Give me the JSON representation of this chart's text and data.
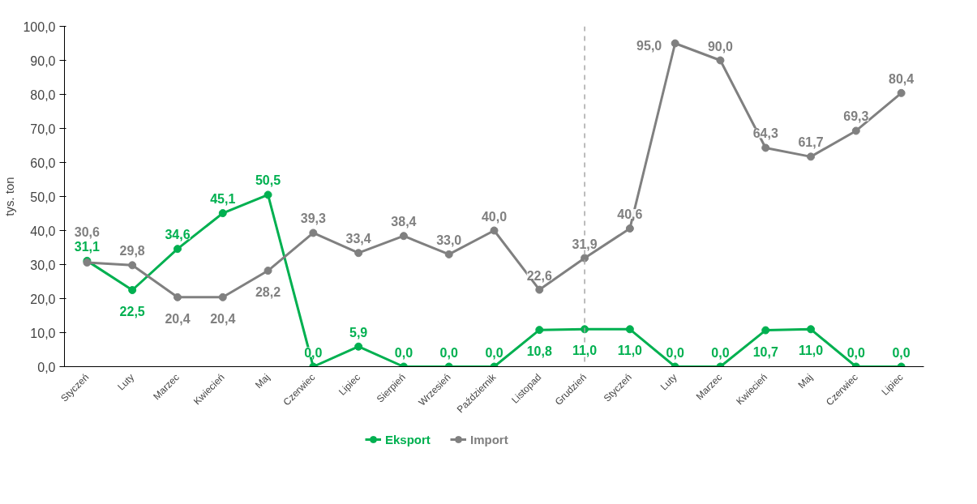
{
  "chart_data": {
    "type": "line",
    "ylabel": "tys. ton",
    "categories": [
      "Styczeń",
      "Luty",
      "Marzec",
      "Kwiecień",
      "Maj",
      "Czerwiec",
      "Lipiec",
      "Sierpień",
      "Wrzesień",
      "Październik",
      "Listopad",
      "Grudzień",
      "Styczeń",
      "Luty",
      "Marzec",
      "Kwiecień",
      "Maj",
      "Czerwiec",
      "Lipiec"
    ],
    "series": [
      {
        "name": "Eksport",
        "color": "#00b050",
        "values": [
          31.1,
          22.5,
          34.6,
          45.1,
          50.5,
          0.0,
          5.9,
          0.0,
          0.0,
          0.0,
          10.8,
          11.0,
          11.0,
          0.0,
          0.0,
          10.7,
          11.0,
          0.0,
          0.0
        ],
        "value_labels": [
          "31,1",
          "22,5",
          "34,6",
          "45,1",
          "50,5",
          "0,0",
          "5,9",
          "0,0",
          "0,0",
          "0,0",
          "10,8",
          "11,0",
          "11,0",
          "0,0",
          "0,0",
          "10,7",
          "11,0",
          "0,0",
          "0,0"
        ]
      },
      {
        "name": "Import",
        "color": "#808080",
        "values": [
          30.6,
          29.8,
          20.4,
          20.4,
          28.2,
          39.3,
          33.4,
          38.4,
          33.0,
          40.0,
          22.6,
          31.9,
          40.6,
          95.0,
          90.0,
          64.3,
          61.7,
          69.3,
          80.4
        ],
        "value_labels": [
          "30,6",
          "29,8",
          "20,4",
          "20,4",
          "28,2",
          "39,3",
          "33,4",
          "38,4",
          "33,0",
          "40,0",
          "22,6",
          "31,9",
          "40,6",
          "95,0",
          "90,0",
          "64,3",
          "61,7",
          "69,3",
          "80,4"
        ]
      }
    ],
    "ylim": [
      0,
      100
    ],
    "yticks": [
      {
        "value": 0,
        "label": "0,0"
      },
      {
        "value": 10,
        "label": "10,0"
      },
      {
        "value": 20,
        "label": "20,0"
      },
      {
        "value": 30,
        "label": "30,0"
      },
      {
        "value": 40,
        "label": "40,0"
      },
      {
        "value": 50,
        "label": "50,0"
      },
      {
        "value": 60,
        "label": "60,0"
      },
      {
        "value": 70,
        "label": "70,0"
      },
      {
        "value": 80,
        "label": "80,0"
      },
      {
        "value": 90,
        "label": "90,0"
      },
      {
        "value": 100,
        "label": "100,0"
      }
    ],
    "ref_lines": [
      {
        "axis": "x",
        "value": "Grudzień",
        "color": "#a6a6a6",
        "line_style": "dashed"
      }
    ],
    "grid": false,
    "legend": "bottom",
    "marker": "circle",
    "line_style": "solid"
  }
}
